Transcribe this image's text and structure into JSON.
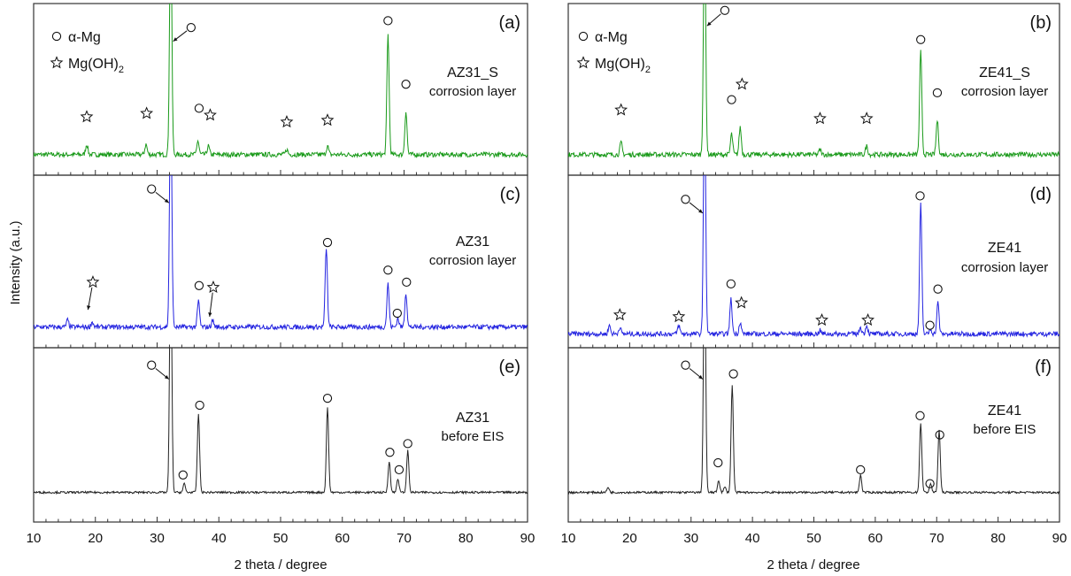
{
  "figure": {
    "ylabel": "Intensity (a.u.)",
    "xlabel": "2 theta / degree",
    "xlim": [
      10,
      90
    ],
    "x_ticks": [
      "10",
      "20",
      "30",
      "40",
      "50",
      "60",
      "70",
      "80",
      "90"
    ]
  },
  "legend": {
    "alpha_mg": "α-Mg",
    "mgoh2_prefix": "Mg(OH)",
    "mgoh2_sub": "2"
  },
  "colors": {
    "green": "#1a9a1a",
    "blue": "#2323e0",
    "black": "#222222"
  },
  "chart_data": [
    {
      "type": "line",
      "label": "(a)",
      "sample": "AZ31_S",
      "condition": "corrosion layer",
      "color": "green",
      "x_range": [
        10,
        90
      ],
      "baseline": 0.12,
      "peaks": [
        [
          18.6,
          0.06
        ],
        [
          28.2,
          0.06
        ],
        [
          32.2,
          1.4
        ],
        [
          36.6,
          0.08
        ],
        [
          38.3,
          0.05
        ],
        [
          51.0,
          0.03
        ],
        [
          57.6,
          0.05
        ],
        [
          67.4,
          0.7
        ],
        [
          70.3,
          0.25
        ]
      ],
      "markers": [
        {
          "symbol": "star",
          "x": 18.6,
          "y": 0.34
        },
        {
          "symbol": "star",
          "x": 28.3,
          "y": 0.36
        },
        {
          "symbol": "circle",
          "x": 35.5,
          "y": 0.86,
          "arrow_to": [
            32.6,
            0.78
          ]
        },
        {
          "symbol": "circle",
          "x": 36.8,
          "y": 0.39
        },
        {
          "symbol": "star",
          "x": 38.6,
          "y": 0.35
        },
        {
          "symbol": "star",
          "x": 51.0,
          "y": 0.31
        },
        {
          "symbol": "star",
          "x": 57.6,
          "y": 0.32
        },
        {
          "symbol": "circle",
          "x": 67.4,
          "y": 0.9
        },
        {
          "symbol": "circle",
          "x": 70.3,
          "y": 0.53
        }
      ]
    },
    {
      "type": "line",
      "label": "(b)",
      "sample": "ZE41_S",
      "condition": "corrosion layer",
      "color": "green",
      "x_range": [
        10,
        90
      ],
      "baseline": 0.12,
      "peaks": [
        [
          18.6,
          0.07
        ],
        [
          32.2,
          1.4
        ],
        [
          36.6,
          0.12
        ],
        [
          38.0,
          0.16
        ],
        [
          51.0,
          0.03
        ],
        [
          58.6,
          0.05
        ],
        [
          67.4,
          0.6
        ],
        [
          70.1,
          0.2
        ]
      ],
      "markers": [
        {
          "symbol": "circle",
          "x": 35.5,
          "y": 0.96,
          "arrow_to": [
            32.6,
            0.87
          ]
        },
        {
          "symbol": "star",
          "x": 18.6,
          "y": 0.38
        },
        {
          "symbol": "circle",
          "x": 36.6,
          "y": 0.44
        },
        {
          "symbol": "star",
          "x": 38.3,
          "y": 0.53
        },
        {
          "symbol": "star",
          "x": 51.0,
          "y": 0.33
        },
        {
          "symbol": "star",
          "x": 58.6,
          "y": 0.33
        },
        {
          "symbol": "circle",
          "x": 67.4,
          "y": 0.79
        },
        {
          "symbol": "circle",
          "x": 70.1,
          "y": 0.48
        }
      ]
    },
    {
      "type": "line",
      "label": "(c)",
      "sample": "AZ31",
      "condition": "corrosion layer",
      "color": "blue",
      "x_range": [
        10,
        90
      ],
      "baseline": 0.12,
      "peaks": [
        [
          15.5,
          0.04
        ],
        [
          19.5,
          0.03
        ],
        [
          32.2,
          1.4
        ],
        [
          36.7,
          0.15
        ],
        [
          39.0,
          0.04
        ],
        [
          57.4,
          0.46
        ],
        [
          67.4,
          0.25
        ],
        [
          69.0,
          0.05
        ],
        [
          70.3,
          0.2
        ]
      ],
      "markers": [
        {
          "symbol": "circle",
          "x": 29.1,
          "y": 0.92,
          "arrow_to": [
            31.9,
            0.84
          ]
        },
        {
          "symbol": "star",
          "x": 19.6,
          "y": 0.38,
          "arrow_to": [
            18.8,
            0.22
          ]
        },
        {
          "symbol": "circle",
          "x": 36.8,
          "y": 0.36
        },
        {
          "symbol": "star",
          "x": 39.1,
          "y": 0.35,
          "arrow_to": [
            38.5,
            0.18
          ]
        },
        {
          "symbol": "circle",
          "x": 57.6,
          "y": 0.61
        },
        {
          "symbol": "circle",
          "x": 67.4,
          "y": 0.45
        },
        {
          "symbol": "circle",
          "x": 68.9,
          "y": 0.2
        },
        {
          "symbol": "circle",
          "x": 70.4,
          "y": 0.38
        }
      ]
    },
    {
      "type": "line",
      "label": "(d)",
      "sample": "ZE41",
      "condition": "corrosion layer",
      "color": "blue",
      "x_range": [
        10,
        90
      ],
      "baseline": 0.08,
      "peaks": [
        [
          16.7,
          0.05
        ],
        [
          18.4,
          0.04
        ],
        [
          28.0,
          0.05
        ],
        [
          32.2,
          1.4
        ],
        [
          36.5,
          0.2
        ],
        [
          38.0,
          0.07
        ],
        [
          51.0,
          0.02
        ],
        [
          57.6,
          0.04
        ],
        [
          58.6,
          0.05
        ],
        [
          67.4,
          0.75
        ],
        [
          69.0,
          0.03
        ],
        [
          70.2,
          0.18
        ]
      ],
      "markers": [
        {
          "symbol": "circle",
          "x": 29.1,
          "y": 0.86,
          "arrow_to": [
            31.9,
            0.78
          ]
        },
        {
          "symbol": "star",
          "x": 18.4,
          "y": 0.19
        },
        {
          "symbol": "star",
          "x": 28.0,
          "y": 0.18
        },
        {
          "symbol": "circle",
          "x": 36.5,
          "y": 0.37
        },
        {
          "symbol": "star",
          "x": 38.2,
          "y": 0.26
        },
        {
          "symbol": "star",
          "x": 51.3,
          "y": 0.16
        },
        {
          "symbol": "star",
          "x": 58.8,
          "y": 0.16
        },
        {
          "symbol": "circle",
          "x": 67.3,
          "y": 0.88
        },
        {
          "symbol": "circle",
          "x": 68.9,
          "y": 0.13
        },
        {
          "symbol": "circle",
          "x": 70.2,
          "y": 0.34
        }
      ]
    },
    {
      "type": "line",
      "label": "(e)",
      "sample": "AZ31",
      "condition": "before EIS",
      "color": "black",
      "x_range": [
        10,
        90
      ],
      "baseline": 0.17,
      "peaks": [
        [
          32.2,
          1.4
        ],
        [
          34.4,
          0.05
        ],
        [
          36.7,
          0.45
        ],
        [
          57.6,
          0.49
        ],
        [
          67.6,
          0.18
        ],
        [
          69.0,
          0.08
        ],
        [
          70.6,
          0.24
        ]
      ],
      "markers": [
        {
          "symbol": "circle",
          "x": 29.1,
          "y": 0.9,
          "arrow_to": [
            31.9,
            0.82
          ]
        },
        {
          "symbol": "circle",
          "x": 34.2,
          "y": 0.27
        },
        {
          "symbol": "circle",
          "x": 36.9,
          "y": 0.67
        },
        {
          "symbol": "circle",
          "x": 57.6,
          "y": 0.71
        },
        {
          "symbol": "circle",
          "x": 67.7,
          "y": 0.4
        },
        {
          "symbol": "circle",
          "x": 69.2,
          "y": 0.3
        },
        {
          "symbol": "circle",
          "x": 70.6,
          "y": 0.45
        }
      ]
    },
    {
      "type": "line",
      "label": "(f)",
      "sample": "ZE41",
      "condition": "before EIS",
      "color": "black",
      "x_range": [
        10,
        90
      ],
      "baseline": 0.17,
      "peaks": [
        [
          16.5,
          0.03
        ],
        [
          32.2,
          1.4
        ],
        [
          34.5,
          0.07
        ],
        [
          35.5,
          0.03
        ],
        [
          36.7,
          0.62
        ],
        [
          57.6,
          0.1
        ],
        [
          67.4,
          0.4
        ],
        [
          69.0,
          0.05
        ],
        [
          70.4,
          0.36
        ]
      ],
      "markers": [
        {
          "symbol": "circle",
          "x": 29.1,
          "y": 0.9,
          "arrow_to": [
            31.9,
            0.82
          ]
        },
        {
          "symbol": "circle",
          "x": 34.4,
          "y": 0.34
        },
        {
          "symbol": "circle",
          "x": 36.9,
          "y": 0.85
        },
        {
          "symbol": "circle",
          "x": 57.6,
          "y": 0.3
        },
        {
          "symbol": "circle",
          "x": 67.3,
          "y": 0.61
        },
        {
          "symbol": "circle",
          "x": 68.9,
          "y": 0.22
        },
        {
          "symbol": "circle",
          "x": 70.5,
          "y": 0.5
        }
      ]
    }
  ]
}
